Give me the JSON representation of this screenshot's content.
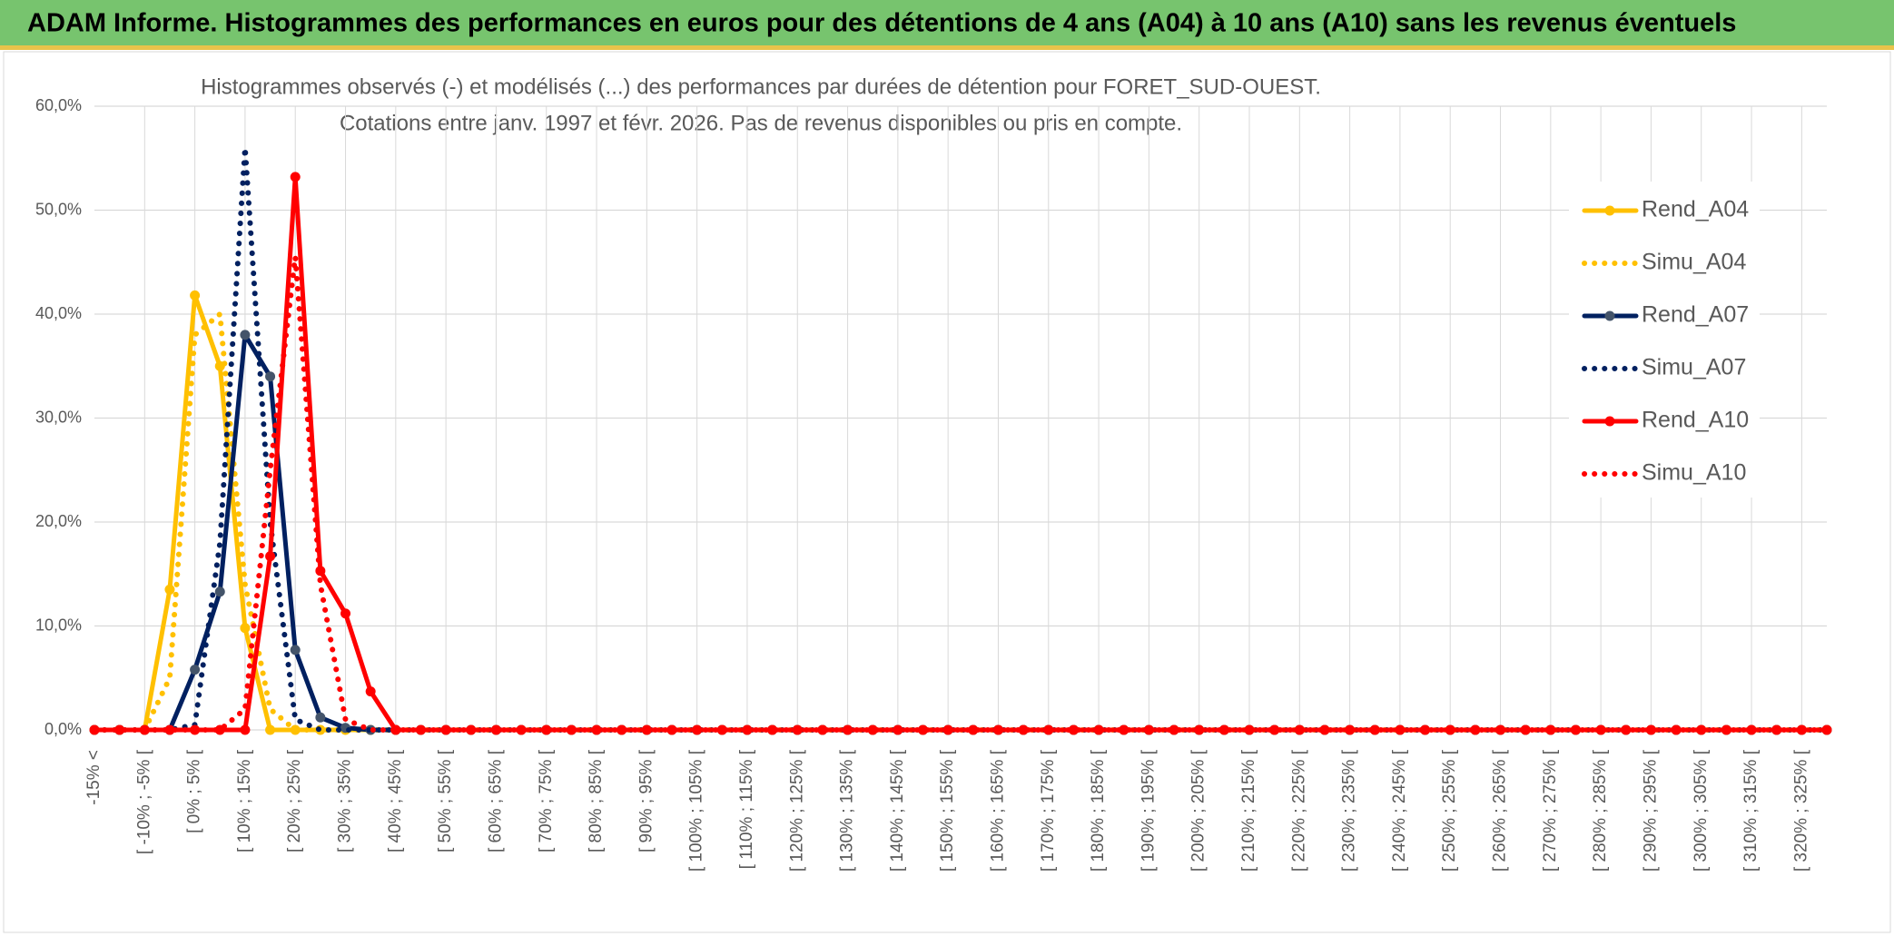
{
  "chart_data": {
    "type": "line",
    "title": "ADAM Informe. Histogrammes des performances en euros pour des détentions de 4 ans (A04) à 10 ans (A10) sans les revenus éventuels",
    "subtitle": [
      "Histogrammes observés (-) et modélisés (...) des performances par durées de détention pour FORET_SUD-OUEST.",
      "Cotations entre janv. 1997 et févr. 2026. Pas de revenus disponibles ou pris en compte."
    ],
    "categories": [
      "-15% <",
      null,
      "[ -10% ; -5% [",
      null,
      "[ 0% ; 5% [",
      null,
      "[ 10% ; 15% [",
      null,
      "[ 20% ; 25% [",
      null,
      "[ 30% ; 35% [",
      null,
      "[ 40% ; 45% [",
      null,
      "[ 50% ; 55% [",
      null,
      "[ 60% ; 65% [",
      null,
      "[ 70% ; 75% [",
      null,
      "[ 80% ; 85% [",
      null,
      "[ 90% ; 95% [",
      null,
      "[ 100% ; 105% [",
      null,
      "[ 110% ; 115% [",
      null,
      "[ 120% ; 125% [",
      null,
      "[ 130% ; 135% [",
      null,
      "[ 140% ; 145% [",
      null,
      "[ 150% ; 155% [",
      null,
      "[ 160% ; 165% [",
      null,
      "[ 170% ; 175% [",
      null,
      "[ 180% ; 185% [",
      null,
      "[ 190% ; 195% [",
      null,
      "[ 200% ; 205% [",
      null,
      "[ 210% ; 215% [",
      null,
      "[ 220% ; 225% [",
      null,
      "[ 230% ; 235% [",
      null,
      "[ 240% ; 245% [",
      null,
      "[ 250% ; 255% [",
      null,
      "[ 260% ; 265% [",
      null,
      "[ 270% ; 275% [",
      null,
      "[ 280% ; 285% [",
      null,
      "[ 290% ; 295% [",
      null,
      "[ 300% ; 305% [",
      null,
      "[ 310% ; 315% [",
      null,
      "[ 320% ; 325% [",
      null
    ],
    "series": [
      {
        "name": "Rend_A04",
        "color": "#FFC000",
        "dash": false,
        "values": [
          0,
          0,
          0,
          13.5,
          41.8,
          35,
          9.8,
          0,
          0,
          0,
          0,
          0,
          0,
          0,
          0,
          0,
          0,
          0,
          0,
          0,
          0,
          0,
          0,
          0,
          0,
          0,
          0,
          0,
          0,
          0,
          0,
          0,
          0,
          0,
          0,
          0,
          0,
          0,
          0,
          0,
          0,
          0,
          0,
          0,
          0,
          0,
          0,
          0,
          0,
          0,
          0,
          0,
          0,
          0,
          0,
          0,
          0,
          0,
          0,
          0,
          0,
          0,
          0,
          0,
          0,
          0,
          0,
          0,
          0,
          0
        ]
      },
      {
        "name": "Simu_A04",
        "color": "#FFC000",
        "dash": true,
        "values": [
          0,
          0,
          0,
          5,
          38,
          40,
          14,
          2,
          0,
          0,
          0,
          0,
          0,
          0,
          0,
          0,
          0,
          0,
          0,
          0,
          0,
          0,
          0,
          0,
          0,
          0,
          0,
          0,
          0,
          0,
          0,
          0,
          0,
          0,
          0,
          0,
          0,
          0,
          0,
          0,
          0,
          0,
          0,
          0,
          0,
          0,
          0,
          0,
          0,
          0,
          0,
          0,
          0,
          0,
          0,
          0,
          0,
          0,
          0,
          0,
          0,
          0,
          0,
          0,
          0,
          0,
          0,
          0,
          0,
          0
        ]
      },
      {
        "name": "Rend_A07",
        "color": "#002060",
        "dash": false,
        "values": [
          0,
          0,
          0,
          0,
          5.8,
          13.3,
          38,
          34,
          7.7,
          1.2,
          0.2,
          0,
          0,
          0,
          0,
          0,
          0,
          0,
          0,
          0,
          0,
          0,
          0,
          0,
          0,
          0,
          0,
          0,
          0,
          0,
          0,
          0,
          0,
          0,
          0,
          0,
          0,
          0,
          0,
          0,
          0,
          0,
          0,
          0,
          0,
          0,
          0,
          0,
          0,
          0,
          0,
          0,
          0,
          0,
          0,
          0,
          0,
          0,
          0,
          0,
          0,
          0,
          0,
          0,
          0,
          0,
          0,
          0,
          0,
          0
        ]
      },
      {
        "name": "Simu_A07",
        "color": "#002060",
        "dash": true,
        "values": [
          0,
          0,
          0,
          0,
          0.5,
          18,
          56,
          20,
          1,
          0,
          0,
          0,
          0,
          0,
          0,
          0,
          0,
          0,
          0,
          0,
          0,
          0,
          0,
          0,
          0,
          0,
          0,
          0,
          0,
          0,
          0,
          0,
          0,
          0,
          0,
          0,
          0,
          0,
          0,
          0,
          0,
          0,
          0,
          0,
          0,
          0,
          0,
          0,
          0,
          0,
          0,
          0,
          0,
          0,
          0,
          0,
          0,
          0,
          0,
          0,
          0,
          0,
          0,
          0,
          0,
          0,
          0,
          0,
          0,
          0
        ]
      },
      {
        "name": "Rend_A10",
        "color": "#FF0000",
        "dash": false,
        "values": [
          0,
          0,
          0,
          0,
          0,
          0,
          0,
          16.7,
          53.2,
          15.3,
          11.2,
          3.7,
          0,
          0,
          0,
          0,
          0,
          0,
          0,
          0,
          0,
          0,
          0,
          0,
          0,
          0,
          0,
          0,
          0,
          0,
          0,
          0,
          0,
          0,
          0,
          0,
          0,
          0,
          0,
          0,
          0,
          0,
          0,
          0,
          0,
          0,
          0,
          0,
          0,
          0,
          0,
          0,
          0,
          0,
          0,
          0,
          0,
          0,
          0,
          0,
          0,
          0,
          0,
          0,
          0,
          0,
          0,
          0,
          0,
          0
        ]
      },
      {
        "name": "Simu_A10",
        "color": "#FF0000",
        "dash": true,
        "values": [
          0,
          0,
          0,
          0,
          0,
          0,
          2,
          25,
          45.5,
          14,
          1,
          0,
          0,
          0,
          0,
          0,
          0,
          0,
          0,
          0,
          0,
          0,
          0,
          0,
          0,
          0,
          0,
          0,
          0,
          0,
          0,
          0,
          0,
          0,
          0,
          0,
          0,
          0,
          0,
          0,
          0,
          0,
          0,
          0,
          0,
          0,
          0,
          0,
          0,
          0,
          0,
          0,
          0,
          0,
          0,
          0,
          0,
          0,
          0,
          0,
          0,
          0,
          0,
          0,
          0,
          0,
          0,
          0,
          0,
          0
        ]
      }
    ],
    "ylim": [
      0,
      60
    ],
    "yticks": [
      {
        "value": 0,
        "label": "0,0%"
      },
      {
        "value": 10,
        "label": "10,0%"
      },
      {
        "value": 20,
        "label": "20,0%"
      },
      {
        "value": 30,
        "label": "30,0%"
      },
      {
        "value": 40,
        "label": "40,0%"
      },
      {
        "value": 50,
        "label": "50,0%"
      },
      {
        "value": 60,
        "label": "60,0%"
      }
    ],
    "grid": true,
    "legend": "right"
  }
}
